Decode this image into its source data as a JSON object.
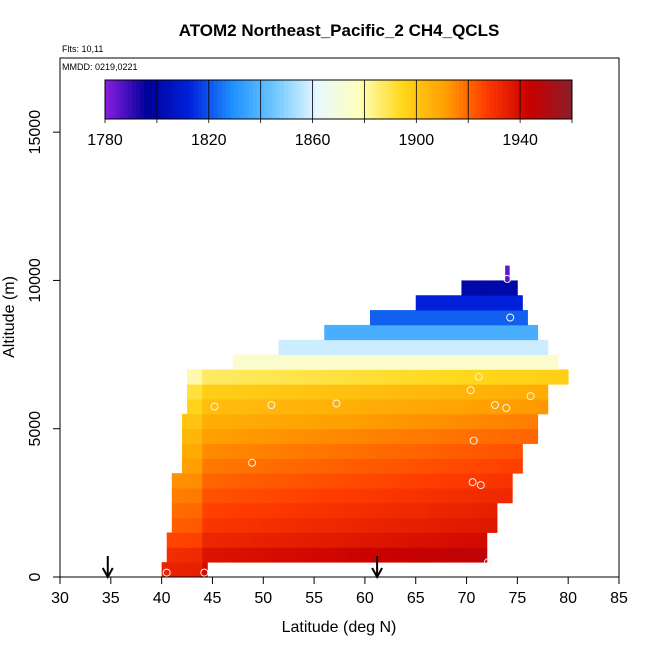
{
  "chart_data": {
    "type": "heatmap",
    "title": "ATOM2 Northeast_Pacific_2 CH4_QCLS",
    "flights_note": "Flts: 10,11",
    "date_note": "MMDD: 0219,0221",
    "xlabel": "Latitude (deg N)",
    "ylabel": "Altitude (m)",
    "xlim": [
      30,
      85
    ],
    "ylim": [
      0,
      17500
    ],
    "x_ticks": [
      30,
      35,
      40,
      45,
      50,
      55,
      60,
      65,
      70,
      75,
      80,
      85
    ],
    "y_ticks": [
      0,
      5000,
      10000,
      15000
    ],
    "colorbar": {
      "range": [
        1780,
        1960
      ],
      "ticks": [
        1780,
        1820,
        1860,
        1900,
        1940
      ],
      "colors": [
        "#8a1ee0",
        "#00009a",
        "#0022dd",
        "#1e90ff",
        "#6ec8ff",
        "#e8f8ff",
        "#ffffbb",
        "#ffd81a",
        "#ffa000",
        "#ff3a00",
        "#c80000",
        "#8c1e2a"
      ]
    },
    "ch4_profile_ppb": [
      {
        "alt": 500,
        "value": 1944
      },
      {
        "alt": 1500,
        "value": 1933
      },
      {
        "alt": 2500,
        "value": 1928
      },
      {
        "alt": 3500,
        "value": 1922
      },
      {
        "alt": 4500,
        "value": 1916
      },
      {
        "alt": 5500,
        "value": 1908
      },
      {
        "alt": 6500,
        "value": 1898
      },
      {
        "alt": 7200,
        "value": 1876
      },
      {
        "alt": 7750,
        "value": 1858
      },
      {
        "alt": 8250,
        "value": 1838
      },
      {
        "alt": 8750,
        "value": 1822
      },
      {
        "alt": 9250,
        "value": 1812
      },
      {
        "alt": 9750,
        "value": 1800
      },
      {
        "alt": 10200,
        "value": 1785
      }
    ],
    "latitude_extent": [
      {
        "alt_lo": 0,
        "alt_hi": 500,
        "lat_lo": 40,
        "lat_hi": 44.5
      },
      {
        "alt_lo": 500,
        "alt_hi": 1500,
        "lat_lo": 40.5,
        "lat_hi": 72
      },
      {
        "alt_lo": 1500,
        "alt_hi": 2500,
        "lat_lo": 41,
        "lat_hi": 73
      },
      {
        "alt_lo": 2500,
        "alt_hi": 3500,
        "lat_lo": 41,
        "lat_hi": 74.5
      },
      {
        "alt_lo": 3500,
        "alt_hi": 4500,
        "lat_lo": 42,
        "lat_hi": 75.5
      },
      {
        "alt_lo": 4500,
        "alt_hi": 5500,
        "lat_lo": 42,
        "lat_hi": 77
      },
      {
        "alt_lo": 5500,
        "alt_hi": 6500,
        "lat_lo": 42.5,
        "lat_hi": 78
      },
      {
        "alt_lo": 6500,
        "alt_hi": 7000,
        "lat_lo": 42.5,
        "lat_hi": 80
      },
      {
        "alt_lo": 7000,
        "alt_hi": 7500,
        "lat_lo": 47,
        "lat_hi": 79
      },
      {
        "alt_lo": 7500,
        "alt_hi": 8000,
        "lat_lo": 51.5,
        "lat_hi": 78
      },
      {
        "alt_lo": 8000,
        "alt_hi": 8500,
        "lat_lo": 56,
        "lat_hi": 77
      },
      {
        "alt_lo": 8500,
        "alt_hi": 9000,
        "lat_lo": 60.5,
        "lat_hi": 76
      },
      {
        "alt_lo": 9000,
        "alt_hi": 9500,
        "lat_lo": 65,
        "lat_hi": 75.5
      },
      {
        "alt_lo": 9500,
        "alt_hi": 10000,
        "lat_lo": 69.5,
        "lat_hi": 75
      },
      {
        "alt_lo": 10000,
        "alt_hi": 10500,
        "lat_lo": 73.8,
        "lat_hi": 74.2
      }
    ],
    "sample_points": [
      {
        "lat": 40.5,
        "alt": 150
      },
      {
        "lat": 44.2,
        "alt": 150
      },
      {
        "lat": 43.2,
        "alt": 6700
      },
      {
        "lat": 45.2,
        "alt": 5750
      },
      {
        "lat": 50.8,
        "alt": 5800
      },
      {
        "lat": 57.2,
        "alt": 5850
      },
      {
        "lat": 48.9,
        "alt": 3850
      },
      {
        "lat": 70.4,
        "alt": 6300
      },
      {
        "lat": 71.2,
        "alt": 6750
      },
      {
        "lat": 72.8,
        "alt": 5800
      },
      {
        "lat": 73.9,
        "alt": 5700
      },
      {
        "lat": 76.3,
        "alt": 6100
      },
      {
        "lat": 70.7,
        "alt": 4600
      },
      {
        "lat": 70.6,
        "alt": 3200
      },
      {
        "lat": 71.4,
        "alt": 3100
      },
      {
        "lat": 72.1,
        "alt": 500
      },
      {
        "lat": 74.3,
        "alt": 8750
      },
      {
        "lat": 74.0,
        "alt": 10050
      }
    ],
    "arrow_markers_lat": [
      34.7,
      61.2
    ]
  }
}
